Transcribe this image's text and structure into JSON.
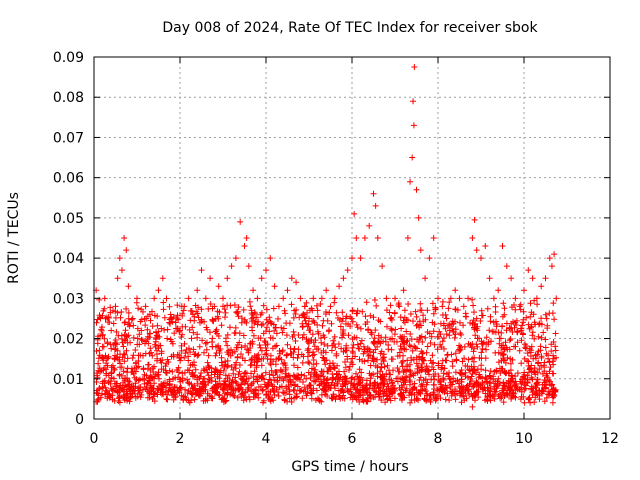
{
  "chart_data": {
    "type": "scatter",
    "title": "Day 008 of 2024, Rate Of TEC Index for receiver sbok",
    "xlabel": "GPS time / hours",
    "ylabel": "ROTI / TECUs",
    "xlim": [
      0,
      12
    ],
    "ylim": [
      0,
      0.09
    ],
    "xticks": [
      0,
      2,
      4,
      6,
      8,
      10,
      12
    ],
    "xtick_labels": [
      "0",
      "2",
      "4",
      "6",
      "8",
      "10",
      "12"
    ],
    "yticks": [
      0,
      0.01,
      0.02,
      0.03,
      0.04,
      0.05,
      0.06,
      0.07,
      0.08,
      0.09
    ],
    "ytick_labels": [
      "0",
      "0.01",
      "0.02",
      "0.03",
      "0.04",
      "0.05",
      "0.06",
      "0.07",
      "0.08",
      "0.09"
    ],
    "grid": true,
    "marker": "+",
    "color": "#ff0000",
    "series": [
      {
        "name": "ROTI",
        "points": [
          [
            0.05,
            0.032
          ],
          [
            0.1,
            0.012
          ],
          [
            0.15,
            0.025
          ],
          [
            0.2,
            0.018
          ],
          [
            0.25,
            0.03
          ],
          [
            0.3,
            0.015
          ],
          [
            0.4,
            0.022
          ],
          [
            0.5,
            0.028
          ],
          [
            0.55,
            0.035
          ],
          [
            0.6,
            0.04
          ],
          [
            0.65,
            0.037
          ],
          [
            0.7,
            0.045
          ],
          [
            0.75,
            0.042
          ],
          [
            0.8,
            0.033
          ],
          [
            0.9,
            0.025
          ],
          [
            1.0,
            0.03
          ],
          [
            1.1,
            0.022
          ],
          [
            1.2,
            0.028
          ],
          [
            1.3,
            0.026
          ],
          [
            1.4,
            0.03
          ],
          [
            1.5,
            0.032
          ],
          [
            1.6,
            0.035
          ],
          [
            1.7,
            0.02
          ],
          [
            1.8,
            0.025
          ],
          [
            1.9,
            0.024
          ],
          [
            2.0,
            0.022
          ],
          [
            2.1,
            0.028
          ],
          [
            2.2,
            0.03
          ],
          [
            2.3,
            0.026
          ],
          [
            2.4,
            0.032
          ],
          [
            2.5,
            0.037
          ],
          [
            2.6,
            0.03
          ],
          [
            2.7,
            0.035
          ],
          [
            2.8,
            0.028
          ],
          [
            2.9,
            0.033
          ],
          [
            3.0,
            0.03
          ],
          [
            3.1,
            0.035
          ],
          [
            3.2,
            0.038
          ],
          [
            3.3,
            0.04
          ],
          [
            3.4,
            0.049
          ],
          [
            3.5,
            0.043
          ],
          [
            3.55,
            0.045
          ],
          [
            3.6,
            0.038
          ],
          [
            3.7,
            0.032
          ],
          [
            3.8,
            0.03
          ],
          [
            3.9,
            0.035
          ],
          [
            4.0,
            0.037
          ],
          [
            4.1,
            0.04
          ],
          [
            4.2,
            0.033
          ],
          [
            4.3,
            0.028
          ],
          [
            4.4,
            0.03
          ],
          [
            4.5,
            0.032
          ],
          [
            4.6,
            0.035
          ],
          [
            4.7,
            0.034
          ],
          [
            4.8,
            0.03
          ],
          [
            4.9,
            0.028
          ],
          [
            5.0,
            0.025
          ],
          [
            5.1,
            0.03
          ],
          [
            5.2,
            0.027
          ],
          [
            5.3,
            0.03
          ],
          [
            5.4,
            0.032
          ],
          [
            5.5,
            0.028
          ],
          [
            5.6,
            0.03
          ],
          [
            5.7,
            0.033
          ],
          [
            5.8,
            0.035
          ],
          [
            5.9,
            0.037
          ],
          [
            6.0,
            0.04
          ],
          [
            6.05,
            0.051
          ],
          [
            6.1,
            0.045
          ],
          [
            6.2,
            0.04
          ],
          [
            6.3,
            0.045
          ],
          [
            6.4,
            0.048
          ],
          [
            6.5,
            0.056
          ],
          [
            6.55,
            0.053
          ],
          [
            6.6,
            0.045
          ],
          [
            6.7,
            0.038
          ],
          [
            6.8,
            0.03
          ],
          [
            6.9,
            0.025
          ],
          [
            7.0,
            0.03
          ],
          [
            7.1,
            0.028
          ],
          [
            7.2,
            0.032
          ],
          [
            7.3,
            0.045
          ],
          [
            7.35,
            0.059
          ],
          [
            7.4,
            0.065
          ],
          [
            7.42,
            0.079
          ],
          [
            7.44,
            0.073
          ],
          [
            7.45,
            0.0875
          ],
          [
            7.5,
            0.057
          ],
          [
            7.55,
            0.05
          ],
          [
            7.6,
            0.042
          ],
          [
            7.7,
            0.035
          ],
          [
            7.8,
            0.04
          ],
          [
            7.9,
            0.045
          ],
          [
            8.0,
            0.03
          ],
          [
            8.1,
            0.028
          ],
          [
            8.2,
            0.025
          ],
          [
            8.3,
            0.03
          ],
          [
            8.4,
            0.032
          ],
          [
            8.5,
            0.03
          ],
          [
            8.6,
            0.028
          ],
          [
            8.7,
            0.03
          ],
          [
            8.8,
            0.045
          ],
          [
            8.85,
            0.0495
          ],
          [
            8.9,
            0.042
          ],
          [
            9.0,
            0.04
          ],
          [
            9.1,
            0.043
          ],
          [
            9.2,
            0.035
          ],
          [
            9.3,
            0.03
          ],
          [
            9.4,
            0.032
          ],
          [
            9.5,
            0.043
          ],
          [
            9.6,
            0.038
          ],
          [
            9.7,
            0.035
          ],
          [
            9.8,
            0.03
          ],
          [
            9.9,
            0.028
          ],
          [
            10.0,
            0.032
          ],
          [
            10.1,
            0.037
          ],
          [
            10.2,
            0.035
          ],
          [
            10.3,
            0.03
          ],
          [
            10.4,
            0.033
          ],
          [
            10.5,
            0.035
          ],
          [
            10.6,
            0.04
          ],
          [
            10.65,
            0.038
          ],
          [
            10.7,
            0.041
          ],
          [
            10.75,
            0.03
          ],
          [
            0.2,
            0.008
          ],
          [
            0.6,
            0.007
          ],
          [
            1.1,
            0.006
          ],
          [
            1.7,
            0.006
          ],
          [
            2.2,
            0.007
          ],
          [
            2.6,
            0.005
          ],
          [
            3.1,
            0.006
          ],
          [
            3.7,
            0.007
          ],
          [
            4.2,
            0.006
          ],
          [
            4.8,
            0.007
          ],
          [
            5.3,
            0.006
          ],
          [
            5.9,
            0.007
          ],
          [
            6.4,
            0.006
          ],
          [
            7.0,
            0.007
          ],
          [
            7.35,
            0.004
          ],
          [
            7.5,
            0.005
          ],
          [
            8.0,
            0.006
          ],
          [
            8.5,
            0.007
          ],
          [
            8.8,
            0.003
          ],
          [
            9.2,
            0.006
          ],
          [
            9.7,
            0.005
          ],
          [
            10.2,
            0.006
          ],
          [
            10.7,
            0.006
          ]
        ]
      }
    ]
  }
}
